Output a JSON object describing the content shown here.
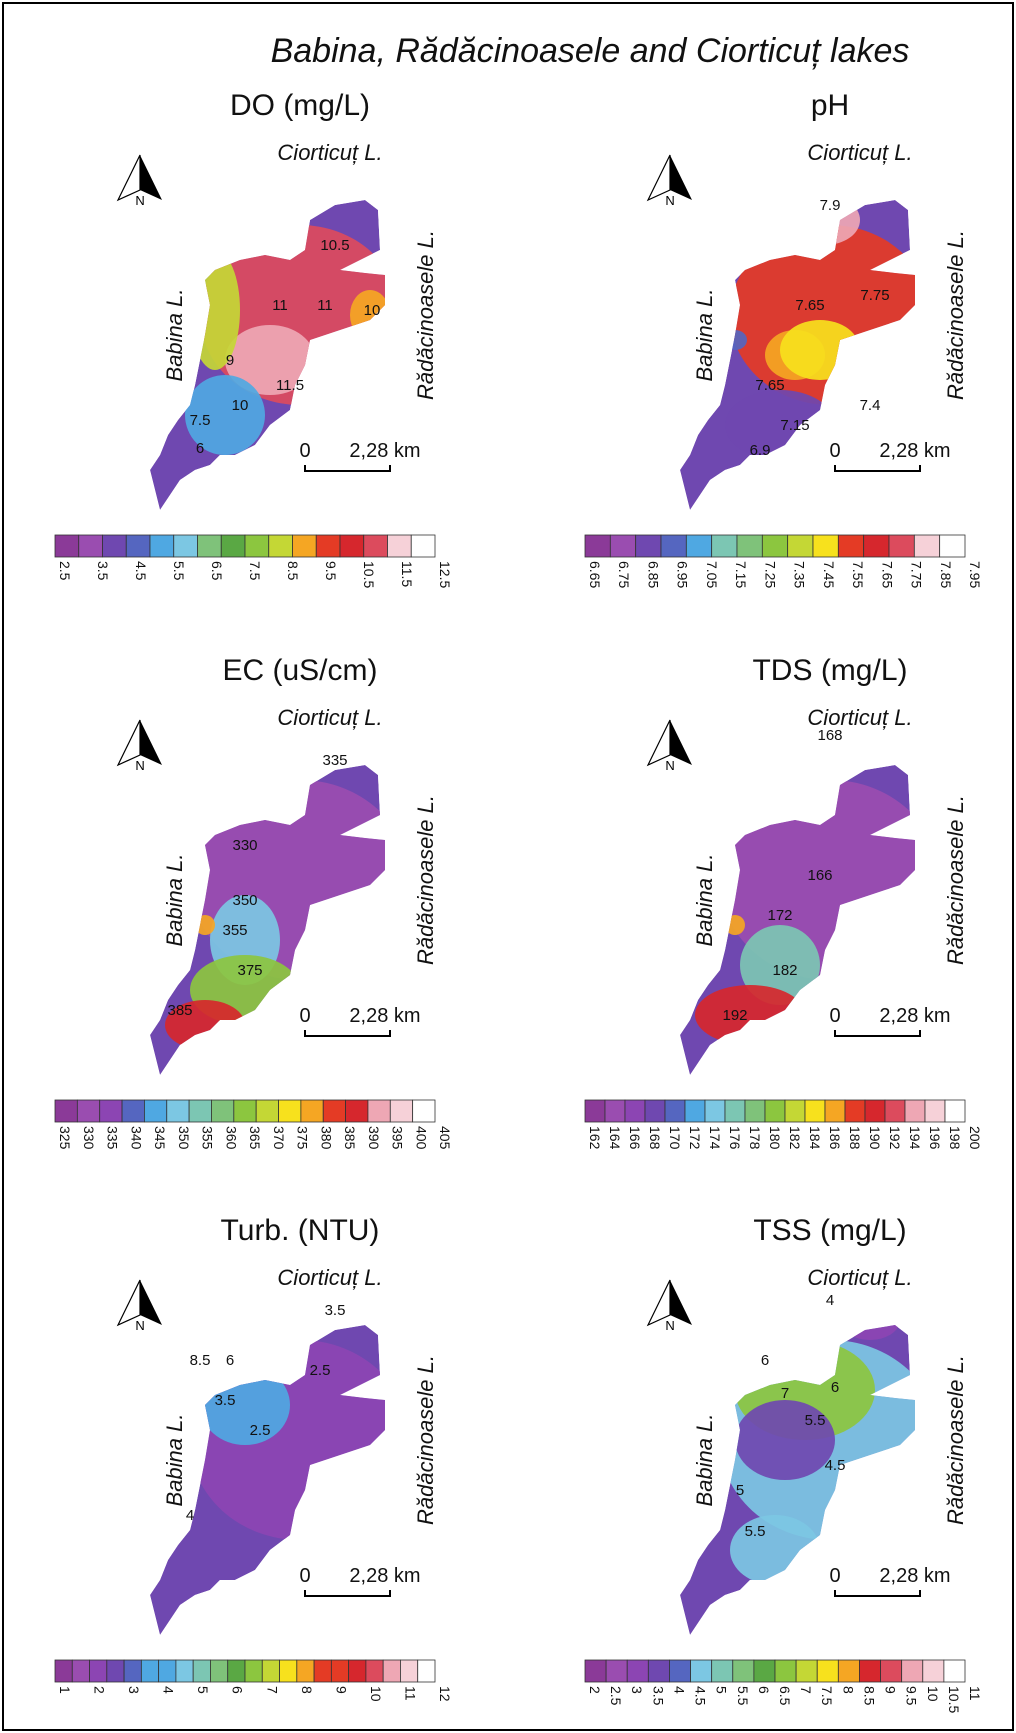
{
  "title": "Babina, Rădăcinoasele and Ciorticuț lakes",
  "north_label": "N",
  "lake_labels": {
    "ciorticut": "Ciorticuț L.",
    "babina": "Babina L.",
    "radacinoasele": "Rădăcinoasele L."
  },
  "scale": {
    "zero": "0",
    "distance": "2,28 km"
  },
  "colors": {
    "ramp": [
      "#8b3a98",
      "#9a4db0",
      "#8c45b3",
      "#6f48b0",
      "#5566c0",
      "#4fa8e2",
      "#7cc7e3",
      "#7cc6b3",
      "#7fc27a",
      "#5aa844",
      "#8cc63f",
      "#c4d735",
      "#f7e11d",
      "#f5a623",
      "#e43b25",
      "#d6272d",
      "#dc4b5d",
      "#eea7b4",
      "#f6d1d8",
      "#ffffff"
    ]
  },
  "panels": [
    {
      "id": "do",
      "title": "DO (mg/L)",
      "ticks": [
        "2.5",
        "3.5",
        "4.5",
        "5.5",
        "6.5",
        "7.5",
        "8.5",
        "9.5",
        "10.5",
        "11.5",
        "12.5"
      ],
      "tick_every": 2,
      "swatches": 16,
      "contours": [
        "10.5",
        "11",
        "11",
        "10",
        "9",
        "11.5",
        "10",
        "7.5",
        "6"
      ]
    },
    {
      "id": "ph",
      "title": "pH",
      "ticks": [
        "6.65",
        "6.75",
        "6.85",
        "6.95",
        "7.05",
        "7.15",
        "7.25",
        "7.35",
        "7.45",
        "7.55",
        "7.65",
        "7.75",
        "7.85",
        "7.95"
      ],
      "tick_every": 1,
      "swatches": 15,
      "contours": [
        "7.9",
        "7.75",
        "7.65",
        "7.65",
        "7.4",
        "7.15",
        "6.9"
      ]
    },
    {
      "id": "ec",
      "title": "EC (uS/cm)",
      "ticks": [
        "325",
        "330",
        "335",
        "340",
        "345",
        "350",
        "355",
        "360",
        "365",
        "370",
        "375",
        "380",
        "385",
        "390",
        "395",
        "400",
        "405"
      ],
      "tick_every": 1,
      "swatches": 17,
      "contours": [
        "335",
        "330",
        "350",
        "355",
        "375",
        "385"
      ]
    },
    {
      "id": "tds",
      "title": "TDS  (mg/L)",
      "ticks": [
        "162",
        "164",
        "166",
        "168",
        "170",
        "172",
        "174",
        "176",
        "178",
        "180",
        "182",
        "184",
        "186",
        "188",
        "190",
        "192",
        "194",
        "196",
        "198",
        "200"
      ],
      "tick_every": 1,
      "swatches": 19,
      "contours": [
        "168",
        "166",
        "172",
        "182",
        "192"
      ]
    },
    {
      "id": "turb",
      "title": "Turb. (NTU)",
      "ticks": [
        "1",
        "2",
        "3",
        "4",
        "5",
        "6",
        "7",
        "8",
        "9",
        "10",
        "11",
        "12"
      ],
      "tick_every": 2,
      "swatches": 22,
      "contours": [
        "3.5",
        "8.5",
        "6",
        "3.5",
        "2.5",
        "2.5",
        "4"
      ]
    },
    {
      "id": "tss",
      "title": "TSS  (mg/L)",
      "ticks": [
        "2",
        "2.5",
        "3",
        "3.5",
        "4",
        "4.5",
        "5",
        "5.5",
        "6",
        "6.5",
        "7",
        "7.5",
        "8",
        "8.5",
        "9",
        "9.5",
        "10",
        "10.5",
        "11"
      ],
      "tick_every": 1,
      "swatches": 18,
      "contours": [
        "4",
        "6",
        "7",
        "6",
        "5.5",
        "4.5",
        "5",
        "5.5"
      ]
    }
  ]
}
